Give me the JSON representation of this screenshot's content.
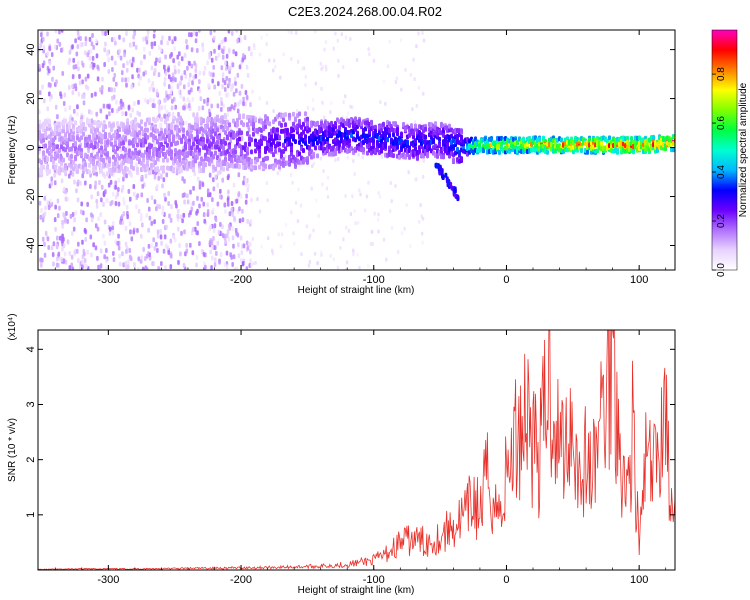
{
  "title": "C2E3.2024.268.00.04.R02",
  "chart_data": [
    {
      "type": "heatmap",
      "xlabel": "Height of straight line (km)",
      "ylabel": "Frequency (Hz)",
      "xlim": [
        -353,
        127
      ],
      "ylim": [
        -50,
        48
      ],
      "xticks": [
        "-300",
        "-200",
        "-100",
        "0",
        "100"
      ],
      "yticks": [
        "-40",
        "-20",
        "0",
        "20",
        "40"
      ],
      "colorbar": {
        "label": "Normalized spectral amplitude",
        "range": [
          0,
          0.98
        ],
        "ticks": [
          "0.0",
          "0.2",
          "0.4",
          "0.6",
          "0.8"
        ],
        "colors": [
          "#ffffff",
          "#e8d2ff",
          "#b070ff",
          "#6a00ff",
          "#0000ff",
          "#00b8ff",
          "#00ffd0",
          "#00ff40",
          "#80ff00",
          "#ffff00",
          "#ff8000",
          "#ff0000",
          "#ff00c0"
        ]
      },
      "ridge": [
        {
          "x": -353,
          "freq": 0,
          "amp": 0.16
        },
        {
          "x": -300,
          "freq": 0,
          "amp": 0.18
        },
        {
          "x": -250,
          "freq": 1,
          "amp": 0.2
        },
        {
          "x": -200,
          "freq": 2,
          "amp": 0.24
        },
        {
          "x": -150,
          "freq": 3,
          "amp": 0.32
        },
        {
          "x": -120,
          "freq": 5,
          "amp": 0.35
        },
        {
          "x": -100,
          "freq": 4,
          "amp": 0.36
        },
        {
          "x": -70,
          "freq": 2,
          "amp": 0.35
        },
        {
          "x": -50,
          "freq": 3,
          "amp": 0.33
        },
        {
          "x": -35,
          "freq": 0,
          "amp": 0.4
        },
        {
          "x": -20,
          "freq": 1,
          "amp": 0.7
        },
        {
          "x": 0,
          "freq": 1,
          "amp": 0.75
        },
        {
          "x": 50,
          "freq": 1,
          "amp": 0.85
        },
        {
          "x": 100,
          "freq": 1,
          "amp": 0.88
        },
        {
          "x": 127,
          "freq": 2,
          "amp": 0.92
        }
      ]
    },
    {
      "type": "line",
      "xlabel": "Height of straight line (km)",
      "ylabel": "SNR (10 * v/v)",
      "yscale_note": "(x10⁴)",
      "xlim": [
        -353,
        127
      ],
      "ylim": [
        0,
        4.35
      ],
      "xticks": [
        "-300",
        "-200",
        "-100",
        "0",
        "100"
      ],
      "yticks": [
        "1",
        "2",
        "3",
        "4"
      ],
      "line_color": "#e8302a",
      "series": [
        {
          "x": [
            -353,
            -320,
            -280,
            -240,
            -200,
            -170,
            -140,
            -120,
            -100,
            -90,
            -80,
            -70,
            -60,
            -50,
            -40,
            -30,
            -25,
            -20,
            -15,
            -10,
            -5,
            0,
            5,
            10,
            15,
            20,
            25,
            30,
            32,
            35,
            40,
            45,
            50,
            55,
            60,
            65,
            70,
            75,
            78,
            80,
            82,
            85,
            90,
            95,
            100,
            105,
            110,
            115,
            118,
            120,
            122,
            125,
            127
          ],
          "y": [
            0.01,
            0.02,
            0.02,
            0.03,
            0.04,
            0.05,
            0.07,
            0.1,
            0.18,
            0.3,
            0.5,
            0.55,
            0.5,
            0.6,
            0.8,
            1.0,
            1.3,
            1.0,
            1.7,
            1.3,
            1.0,
            1.7,
            2.2,
            2.6,
            3.1,
            2.4,
            2.0,
            3.2,
            3.5,
            3.1,
            2.2,
            2.4,
            2.8,
            1.6,
            2.0,
            1.7,
            2.6,
            3.2,
            3.8,
            4.3,
            3.6,
            2.6,
            1.2,
            2.6,
            0.4,
            2.0,
            1.7,
            2.1,
            3.1,
            3.1,
            1.9,
            0.8,
            1.3
          ]
        }
      ]
    }
  ]
}
